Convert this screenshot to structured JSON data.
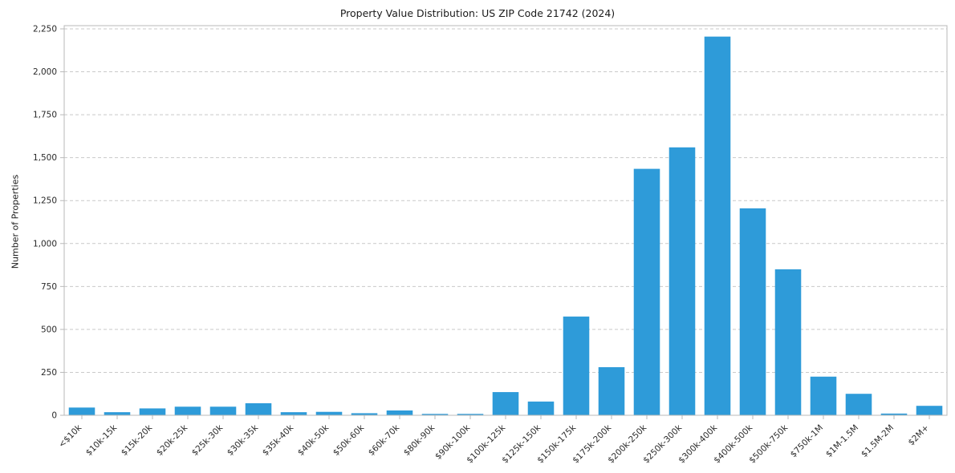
{
  "chart_data": {
    "type": "bar",
    "title": "Property Value Distribution: US ZIP Code 21742 (2024)",
    "xlabel": "",
    "ylabel": "Number of Properties",
    "ylim": [
      0,
      2250
    ],
    "ytick_step": 250,
    "grid": "dashed-horizontal",
    "legend": "none",
    "categories": [
      "<$10k",
      "$10k-15k",
      "$15k-20k",
      "$20k-25k",
      "$25k-30k",
      "$30k-35k",
      "$35k-40k",
      "$40k-50k",
      "$50k-60k",
      "$60k-70k",
      "$80k-90k",
      "$90k-100k",
      "$100k-125k",
      "$125k-150k",
      "$150k-175k",
      "$175k-200k",
      "$200k-250k",
      "$250k-300k",
      "$300k-400k",
      "$400k-500k",
      "$500k-750k",
      "$750k-1M",
      "$1M-1.5M",
      "$1.5M-2M",
      "$2M+"
    ],
    "values": [
      45,
      18,
      40,
      50,
      50,
      70,
      18,
      20,
      12,
      28,
      8,
      8,
      135,
      80,
      575,
      280,
      1435,
      1560,
      2205,
      1205,
      850,
      225,
      125,
      10,
      55
    ],
    "ytick_labels": [
      "0",
      "250",
      "500",
      "750",
      "1,000",
      "1,250",
      "1,500",
      "1,750",
      "2,000",
      "2,250"
    ]
  },
  "colors": {
    "bar": "#2e9bd9",
    "grid": "#c9c9c9",
    "spine": "#b8b8b8",
    "axis_text": "#2a2a2a"
  }
}
